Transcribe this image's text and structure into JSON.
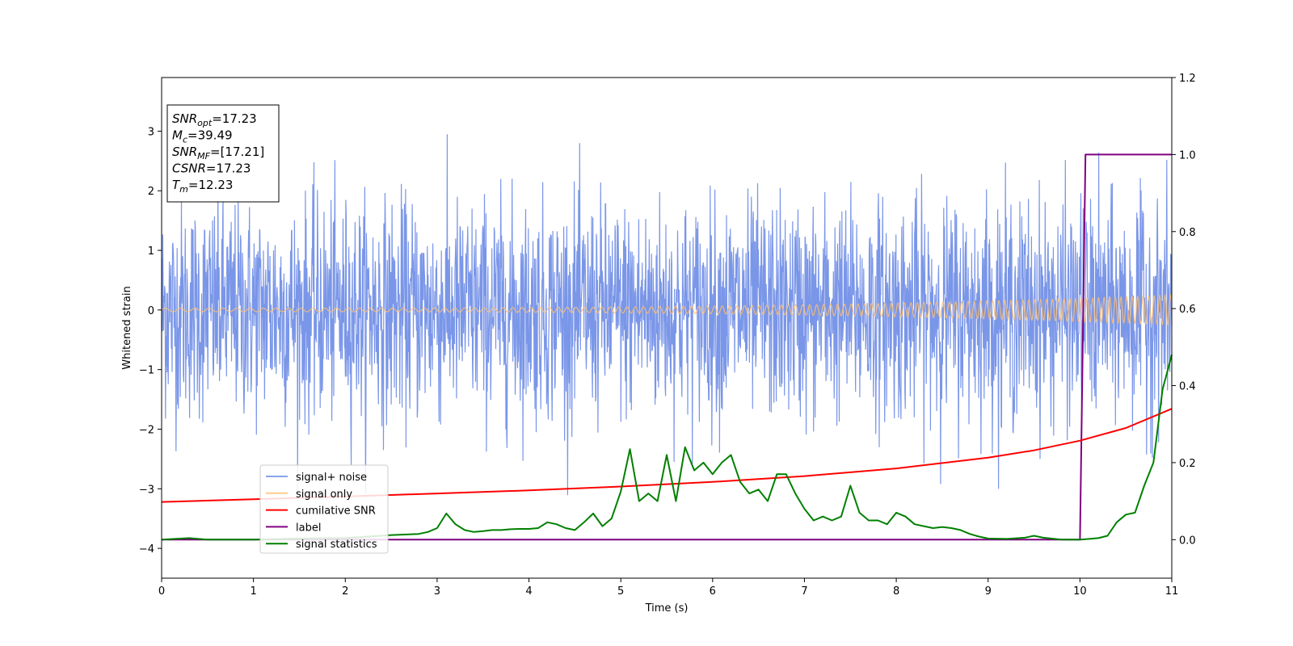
{
  "chart_data": {
    "type": "line",
    "title": "",
    "xlabel": "Time (s)",
    "ylabel": "Whitened strain",
    "xlim": [
      0,
      11
    ],
    "ylim_left": [
      -4.5,
      3.9
    ],
    "ylim_right": [
      -0.1,
      1.2
    ],
    "x_ticks": [
      0,
      1,
      2,
      3,
      4,
      5,
      6,
      7,
      8,
      9,
      10,
      11
    ],
    "y_ticks_left": [
      -4,
      -3,
      -2,
      -1,
      0,
      1,
      2,
      3
    ],
    "y_ticks_right": [
      0.0,
      0.2,
      0.4,
      0.6,
      0.8,
      1.0,
      1.2
    ],
    "grid": false,
    "legend_location": "lower-left",
    "colors": {
      "signal_noise": "#6b8be6",
      "signal_only": "#ffbf6e",
      "cumulative_snr": "#ff0000",
      "label": "#800080",
      "signal_statistics": "#008000"
    },
    "series": [
      {
        "name": "signal+ noise",
        "axis": "left",
        "description_note": "noise band, roughly ±1.5 with spikes to about ±3.2",
        "x": [
          0,
          11
        ],
        "band": [
          -1.5,
          1.5
        ]
      },
      {
        "name": "signal only",
        "axis": "left",
        "x_start": 0,
        "x_end": 11,
        "amplitude_start": 0.03,
        "amplitude_end": 0.25
      },
      {
        "name": "cumilative SNR",
        "axis": "right",
        "x": [
          0,
          1,
          2,
          3,
          4,
          5,
          6,
          7,
          8,
          9,
          9.5,
          10,
          10.5,
          11
        ],
        "values": [
          0.098,
          0.105,
          0.112,
          0.12,
          0.128,
          0.138,
          0.15,
          0.165,
          0.185,
          0.213,
          0.232,
          0.257,
          0.29,
          0.34
        ]
      },
      {
        "name": "label",
        "axis": "right",
        "x": [
          0,
          10.0,
          10.06,
          11
        ],
        "values": [
          0,
          0,
          1,
          1
        ]
      },
      {
        "name": "signal statistics",
        "axis": "right",
        "x": [
          0,
          0.3,
          0.5,
          1,
          1.5,
          2,
          2.5,
          2.8,
          2.9,
          3.0,
          3.1,
          3.2,
          3.3,
          3.4,
          3.5,
          3.6,
          3.7,
          3.8,
          3.9,
          4.0,
          4.1,
          4.2,
          4.3,
          4.4,
          4.5,
          4.6,
          4.7,
          4.8,
          4.9,
          5.0,
          5.1,
          5.2,
          5.3,
          5.4,
          5.5,
          5.6,
          5.7,
          5.8,
          5.9,
          6.0,
          6.1,
          6.2,
          6.3,
          6.4,
          6.5,
          6.6,
          6.7,
          6.8,
          6.9,
          7.0,
          7.1,
          7.2,
          7.3,
          7.4,
          7.5,
          7.6,
          7.7,
          7.8,
          7.9,
          8.0,
          8.1,
          8.2,
          8.3,
          8.4,
          8.5,
          8.6,
          8.7,
          8.8,
          8.9,
          9.0,
          9.2,
          9.4,
          9.5,
          9.6,
          9.8,
          10.0,
          10.1,
          10.2,
          10.3,
          10.4,
          10.5,
          10.6,
          10.7,
          10.8,
          10.9,
          11.0
        ],
        "values": [
          0.0,
          0.004,
          0.0,
          0.0,
          0.003,
          0.004,
          0.012,
          0.015,
          0.02,
          0.03,
          0.068,
          0.04,
          0.025,
          0.02,
          0.022,
          0.025,
          0.025,
          0.027,
          0.028,
          0.028,
          0.03,
          0.045,
          0.04,
          0.03,
          0.025,
          0.045,
          0.068,
          0.035,
          0.055,
          0.125,
          0.235,
          0.1,
          0.12,
          0.1,
          0.22,
          0.1,
          0.24,
          0.18,
          0.2,
          0.17,
          0.2,
          0.22,
          0.15,
          0.12,
          0.13,
          0.1,
          0.17,
          0.17,
          0.12,
          0.08,
          0.05,
          0.06,
          0.05,
          0.06,
          0.14,
          0.07,
          0.05,
          0.05,
          0.04,
          0.07,
          0.06,
          0.04,
          0.035,
          0.03,
          0.033,
          0.03,
          0.025,
          0.015,
          0.008,
          0.003,
          0.002,
          0.005,
          0.01,
          0.005,
          0.0,
          0.0,
          0.002,
          0.004,
          0.01,
          0.045,
          0.065,
          0.07,
          0.14,
          0.2,
          0.39,
          0.48
        ]
      }
    ],
    "annotation": {
      "lines": [
        {
          "main": "SNR",
          "sub": "opt",
          "value": "=17.23"
        },
        {
          "main": "M",
          "sub": "c",
          "value": "=39.49"
        },
        {
          "main": "SNR",
          "sub": "MF",
          "value": "=[17.21]"
        },
        {
          "main": "CSNR",
          "sub": "",
          "value": "=17.23"
        },
        {
          "main": "T",
          "sub": "m",
          "value": "=12.23"
        }
      ]
    },
    "legend": [
      "signal+ noise",
      "signal only",
      "cumilative SNR",
      "label",
      "signal statistics"
    ]
  }
}
